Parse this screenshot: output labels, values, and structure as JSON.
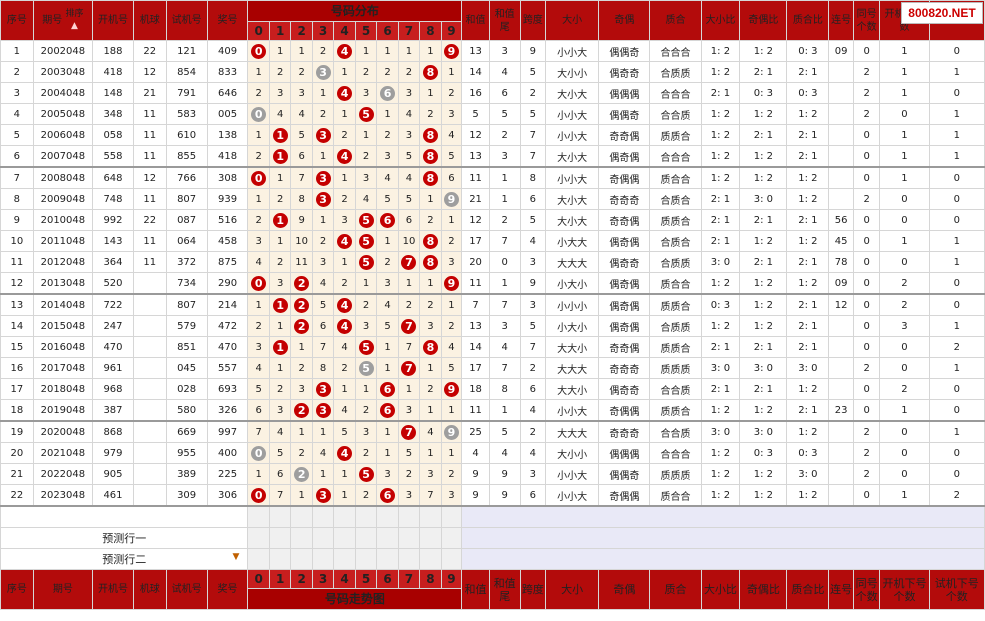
{
  "logo": "800820.NET",
  "header": {
    "seq": "序号",
    "period": "期号",
    "sort": "排序",
    "kj": "开机号",
    "jq": "机球",
    "sj": "试机号",
    "jh": "奖号",
    "zone": "号码分布",
    "footer_zone": "号码走势图",
    "digits": [
      "0",
      "1",
      "2",
      "3",
      "4",
      "5",
      "6",
      "7",
      "8",
      "9"
    ],
    "hz": "和值",
    "hzw": "和值尾",
    "kd": "跨度",
    "dx": "大小",
    "jo": "奇偶",
    "zh": "质合",
    "dxb": "大小比",
    "job": "奇偶比",
    "zhb": "质合比",
    "lh": "连号",
    "thgs": "同号个数",
    "kjx": "开机下个数",
    "sjx": "试机下个数",
    "kjx_short": "开机下个数",
    "sjx_short": "个数",
    "kjx_foot": "开机下号个数",
    "sjx_foot": "试机下号个数"
  },
  "predict": [
    "预测行一",
    "预测行二"
  ],
  "rows": [
    {
      "seq": "1",
      "period": "2002048",
      "kj": "188",
      "jq": "22",
      "sj": "121",
      "jh": "409",
      "digits": [
        "0",
        "1",
        "1",
        "2",
        "4",
        "1",
        "1",
        "1",
        "1",
        "9"
      ],
      "hit": [
        0,
        4,
        9
      ],
      "gray": [],
      "hz": "13",
      "hzw": "3",
      "kd": "9",
      "dx": "小小大",
      "jo": "偶偶奇",
      "zh": "合合合",
      "dxb": "1: 2",
      "job": "1: 2",
      "zhb": "0: 3",
      "lh": "09",
      "thgs": "0",
      "kjx": "1",
      "sjx": "0"
    },
    {
      "seq": "2",
      "period": "2003048",
      "kj": "418",
      "jq": "12",
      "sj": "854",
      "jh": "833",
      "digits": [
        "1",
        "2",
        "2",
        "3",
        "1",
        "2",
        "2",
        "2",
        "8",
        "1"
      ],
      "hit": [
        8
      ],
      "gray": [
        3
      ],
      "hz": "14",
      "hzw": "4",
      "kd": "5",
      "dx": "大小小",
      "jo": "偶奇奇",
      "zh": "合质质",
      "dxb": "1: 2",
      "job": "2: 1",
      "zhb": "2: 1",
      "lh": "",
      "thgs": "2",
      "kjx": "1",
      "sjx": "1"
    },
    {
      "seq": "3",
      "period": "2004048",
      "kj": "148",
      "jq": "21",
      "sj": "791",
      "jh": "646",
      "digits": [
        "2",
        "3",
        "3",
        "1",
        "4",
        "3",
        "6",
        "3",
        "1",
        "2"
      ],
      "hit": [
        4
      ],
      "gray": [
        6
      ],
      "hz": "16",
      "hzw": "6",
      "kd": "2",
      "dx": "大小大",
      "jo": "偶偶偶",
      "zh": "合合合",
      "dxb": "2: 1",
      "job": "0: 3",
      "zhb": "0: 3",
      "lh": "",
      "thgs": "2",
      "kjx": "1",
      "sjx": "0"
    },
    {
      "seq": "4",
      "period": "2005048",
      "kj": "348",
      "jq": "11",
      "sj": "583",
      "jh": "005",
      "digits": [
        "0",
        "4",
        "4",
        "2",
        "1",
        "5",
        "1",
        "4",
        "2",
        "3"
      ],
      "hit": [
        5
      ],
      "gray": [
        0
      ],
      "hz": "5",
      "hzw": "5",
      "kd": "5",
      "dx": "小小大",
      "jo": "偶偶奇",
      "zh": "合合质",
      "dxb": "1: 2",
      "job": "1: 2",
      "zhb": "1: 2",
      "lh": "",
      "thgs": "2",
      "kjx": "0",
      "sjx": "1"
    },
    {
      "seq": "5",
      "period": "2006048",
      "kj": "058",
      "jq": "11",
      "sj": "610",
      "jh": "138",
      "digits": [
        "1",
        "1",
        "5",
        "3",
        "2",
        "1",
        "2",
        "3",
        "8",
        "4"
      ],
      "hit": [
        1,
        3,
        8
      ],
      "gray": [],
      "hz": "12",
      "hzw": "2",
      "kd": "7",
      "dx": "小小大",
      "jo": "奇奇偶",
      "zh": "质质合",
      "dxb": "1: 2",
      "job": "2: 1",
      "zhb": "2: 1",
      "lh": "",
      "thgs": "0",
      "kjx": "1",
      "sjx": "1"
    },
    {
      "seq": "6",
      "period": "2007048",
      "kj": "558",
      "jq": "11",
      "sj": "855",
      "jh": "418",
      "digits": [
        "2",
        "1",
        "6",
        "1",
        "4",
        "2",
        "3",
        "5",
        "8",
        "5"
      ],
      "hit": [
        1,
        4,
        8
      ],
      "gray": [],
      "hz": "13",
      "hzw": "3",
      "kd": "7",
      "dx": "大小大",
      "jo": "偶奇偶",
      "zh": "合合合",
      "dxb": "1: 2",
      "job": "1: 2",
      "zhb": "2: 1",
      "lh": "",
      "thgs": "0",
      "kjx": "1",
      "sjx": "1"
    },
    {
      "seq": "7",
      "period": "2008048",
      "kj": "648",
      "jq": "12",
      "sj": "766",
      "jh": "308",
      "digits": [
        "0",
        "1",
        "7",
        "3",
        "1",
        "3",
        "4",
        "4",
        "8",
        "6"
      ],
      "hit": [
        0,
        3,
        8
      ],
      "gray": [],
      "hz": "11",
      "hzw": "1",
      "kd": "8",
      "dx": "小小大",
      "jo": "奇偶偶",
      "zh": "质合合",
      "dxb": "1: 2",
      "job": "1: 2",
      "zhb": "1: 2",
      "lh": "",
      "thgs": "0",
      "kjx": "1",
      "sjx": "0"
    },
    {
      "seq": "8",
      "period": "2009048",
      "kj": "748",
      "jq": "11",
      "sj": "807",
      "jh": "939",
      "digits": [
        "1",
        "2",
        "8",
        "3",
        "2",
        "4",
        "5",
        "5",
        "1",
        "9"
      ],
      "hit": [
        3
      ],
      "gray": [
        9
      ],
      "hz": "21",
      "hzw": "1",
      "kd": "6",
      "dx": "大小大",
      "jo": "奇奇奇",
      "zh": "合质合",
      "dxb": "2: 1",
      "job": "3: 0",
      "zhb": "1: 2",
      "lh": "",
      "thgs": "2",
      "kjx": "0",
      "sjx": "0"
    },
    {
      "seq": "9",
      "period": "2010048",
      "kj": "992",
      "jq": "22",
      "sj": "087",
      "jh": "516",
      "digits": [
        "2",
        "1",
        "9",
        "1",
        "3",
        "5",
        "6",
        "6",
        "2",
        "1"
      ],
      "hit": [
        1,
        5,
        6
      ],
      "gray": [],
      "hz": "12",
      "hzw": "2",
      "kd": "5",
      "dx": "大小大",
      "jo": "奇奇偶",
      "zh": "质质合",
      "dxb": "2: 1",
      "job": "2: 1",
      "zhb": "2: 1",
      "lh": "56",
      "thgs": "0",
      "kjx": "0",
      "sjx": "0"
    },
    {
      "seq": "10",
      "period": "2011048",
      "kj": "143",
      "jq": "11",
      "sj": "064",
      "jh": "458",
      "digits": [
        "3",
        "1",
        "10",
        "2",
        "4",
        "5",
        "1",
        "10",
        "8",
        "2"
      ],
      "hit": [
        4,
        5,
        8
      ],
      "gray": [],
      "hz": "17",
      "hzw": "7",
      "kd": "4",
      "dx": "小大大",
      "jo": "偶奇偶",
      "zh": "合质合",
      "dxb": "2: 1",
      "job": "1: 2",
      "zhb": "1: 2",
      "lh": "45",
      "thgs": "0",
      "kjx": "1",
      "sjx": "1"
    },
    {
      "seq": "11",
      "period": "2012048",
      "kj": "364",
      "jq": "11",
      "sj": "372",
      "jh": "875",
      "digits": [
        "4",
        "2",
        "11",
        "3",
        "1",
        "5",
        "2",
        "7",
        "8",
        "3"
      ],
      "hit": [
        5,
        7,
        8
      ],
      "gray": [],
      "hz": "20",
      "hzw": "0",
      "kd": "3",
      "dx": "大大大",
      "jo": "偶奇奇",
      "zh": "合质质",
      "dxb": "3: 0",
      "job": "2: 1",
      "zhb": "2: 1",
      "lh": "78",
      "thgs": "0",
      "kjx": "0",
      "sjx": "1"
    },
    {
      "seq": "12",
      "period": "2013048",
      "kj": "520",
      "jq": "",
      "sj": "734",
      "jh": "290",
      "digits": [
        "0",
        "3",
        "2",
        "4",
        "2",
        "1",
        "3",
        "1",
        "1",
        "9"
      ],
      "hit": [
        0,
        2,
        9
      ],
      "gray": [],
      "hz": "11",
      "hzw": "1",
      "kd": "9",
      "dx": "小大小",
      "jo": "偶奇偶",
      "zh": "质合合",
      "dxb": "1: 2",
      "job": "1: 2",
      "zhb": "1: 2",
      "lh": "09",
      "thgs": "0",
      "kjx": "2",
      "sjx": "0"
    },
    {
      "seq": "13",
      "period": "2014048",
      "kj": "722",
      "jq": "",
      "sj": "807",
      "jh": "214",
      "digits": [
        "1",
        "1",
        "2",
        "5",
        "4",
        "2",
        "4",
        "2",
        "2",
        "1"
      ],
      "hit": [
        1,
        2,
        4
      ],
      "gray": [],
      "hz": "7",
      "hzw": "7",
      "kd": "3",
      "dx": "小小小",
      "jo": "偶奇偶",
      "zh": "质质合",
      "dxb": "0: 3",
      "job": "1: 2",
      "zhb": "2: 1",
      "lh": "12",
      "thgs": "0",
      "kjx": "2",
      "sjx": "0"
    },
    {
      "seq": "14",
      "period": "2015048",
      "kj": "247",
      "jq": "",
      "sj": "579",
      "jh": "472",
      "digits": [
        "2",
        "1",
        "2",
        "6",
        "4",
        "3",
        "5",
        "7",
        "3",
        "2"
      ],
      "hit": [
        2,
        4,
        7
      ],
      "gray": [],
      "hz": "13",
      "hzw": "3",
      "kd": "5",
      "dx": "小大小",
      "jo": "偶奇偶",
      "zh": "合质质",
      "dxb": "1: 2",
      "job": "1: 2",
      "zhb": "2: 1",
      "lh": "",
      "thgs": "0",
      "kjx": "3",
      "sjx": "1"
    },
    {
      "seq": "15",
      "period": "2016048",
      "kj": "470",
      "jq": "",
      "sj": "851",
      "jh": "470",
      "digits": [
        "3",
        "1",
        "1",
        "7",
        "4",
        "5",
        "1",
        "7",
        "8",
        "4"
      ],
      "hit": [
        1,
        5,
        8
      ],
      "gray": [],
      "hz": "14",
      "hzw": "4",
      "kd": "7",
      "dx": "大大小",
      "jo": "奇奇偶",
      "zh": "质质合",
      "dxb": "2: 1",
      "job": "2: 1",
      "zhb": "2: 1",
      "lh": "",
      "thgs": "0",
      "kjx": "0",
      "sjx": "2"
    },
    {
      "seq": "16",
      "period": "2017048",
      "kj": "961",
      "jq": "",
      "sj": "045",
      "jh": "557",
      "digits": [
        "4",
        "1",
        "2",
        "8",
        "2",
        "5",
        "1",
        "7",
        "1",
        "5"
      ],
      "hit": [
        7
      ],
      "gray": [
        5
      ],
      "hz": "17",
      "hzw": "7",
      "kd": "2",
      "dx": "大大大",
      "jo": "奇奇奇",
      "zh": "质质质",
      "dxb": "3: 0",
      "job": "3: 0",
      "zhb": "3: 0",
      "lh": "",
      "thgs": "2",
      "kjx": "0",
      "sjx": "1"
    },
    {
      "seq": "17",
      "period": "2018048",
      "kj": "968",
      "jq": "",
      "sj": "028",
      "jh": "693",
      "digits": [
        "5",
        "2",
        "3",
        "3",
        "1",
        "1",
        "6",
        "1",
        "2",
        "9"
      ],
      "hit": [
        3,
        6,
        9
      ],
      "gray": [],
      "hz": "18",
      "hzw": "8",
      "kd": "6",
      "dx": "大大小",
      "jo": "偶奇奇",
      "zh": "合合质",
      "dxb": "2: 1",
      "job": "2: 1",
      "zhb": "1: 2",
      "lh": "",
      "thgs": "0",
      "kjx": "2",
      "sjx": "0"
    },
    {
      "seq": "18",
      "period": "2019048",
      "kj": "387",
      "jq": "",
      "sj": "580",
      "jh": "326",
      "digits": [
        "6",
        "3",
        "2",
        "3",
        "4",
        "2",
        "6",
        "3",
        "1",
        "1"
      ],
      "hit": [
        2,
        3,
        6
      ],
      "gray": [],
      "hz": "11",
      "hzw": "1",
      "kd": "4",
      "dx": "小小大",
      "jo": "奇偶偶",
      "zh": "质质合",
      "dxb": "1: 2",
      "job": "1: 2",
      "zhb": "2: 1",
      "lh": "23",
      "thgs": "0",
      "kjx": "1",
      "sjx": "0"
    },
    {
      "seq": "19",
      "period": "2020048",
      "kj": "868",
      "jq": "",
      "sj": "669",
      "jh": "997",
      "digits": [
        "7",
        "4",
        "1",
        "1",
        "5",
        "3",
        "1",
        "7",
        "4",
        "9"
      ],
      "hit": [
        7
      ],
      "gray": [
        9
      ],
      "hz": "25",
      "hzw": "5",
      "kd": "2",
      "dx": "大大大",
      "jo": "奇奇奇",
      "zh": "合合质",
      "dxb": "3: 0",
      "job": "3: 0",
      "zhb": "1: 2",
      "lh": "",
      "thgs": "2",
      "kjx": "0",
      "sjx": "1"
    },
    {
      "seq": "20",
      "period": "2021048",
      "kj": "979",
      "jq": "",
      "sj": "955",
      "jh": "400",
      "digits": [
        "0",
        "5",
        "2",
        "4",
        "4",
        "2",
        "1",
        "5",
        "1",
        "1"
      ],
      "hit": [
        4
      ],
      "gray": [
        0
      ],
      "hz": "4",
      "hzw": "4",
      "kd": "4",
      "dx": "大小小",
      "jo": "偶偶偶",
      "zh": "合合合",
      "dxb": "1: 2",
      "job": "0: 3",
      "zhb": "0: 3",
      "lh": "",
      "thgs": "2",
      "kjx": "0",
      "sjx": "0"
    },
    {
      "seq": "21",
      "period": "2022048",
      "kj": "905",
      "jq": "",
      "sj": "389",
      "jh": "225",
      "digits": [
        "1",
        "6",
        "2",
        "1",
        "1",
        "5",
        "3",
        "2",
        "3",
        "2"
      ],
      "hit": [
        5
      ],
      "gray": [
        2
      ],
      "hz": "9",
      "hzw": "9",
      "kd": "3",
      "dx": "小小大",
      "jo": "偶偶奇",
      "zh": "质质质",
      "dxb": "1: 2",
      "job": "1: 2",
      "zhb": "3: 0",
      "lh": "",
      "thgs": "2",
      "kjx": "0",
      "sjx": "0"
    },
    {
      "seq": "22",
      "period": "2023048",
      "kj": "461",
      "jq": "",
      "sj": "309",
      "jh": "306",
      "digits": [
        "0",
        "7",
        "1",
        "3",
        "1",
        "2",
        "6",
        "3",
        "7",
        "3"
      ],
      "hit": [
        0,
        3,
        6
      ],
      "gray": [],
      "hz": "9",
      "hzw": "9",
      "kd": "6",
      "dx": "小小大",
      "jo": "奇偶偶",
      "zh": "质合合",
      "dxb": "1: 2",
      "job": "1: 2",
      "zhb": "1: 2",
      "lh": "",
      "thgs": "0",
      "kjx": "1",
      "sjx": "2"
    }
  ]
}
